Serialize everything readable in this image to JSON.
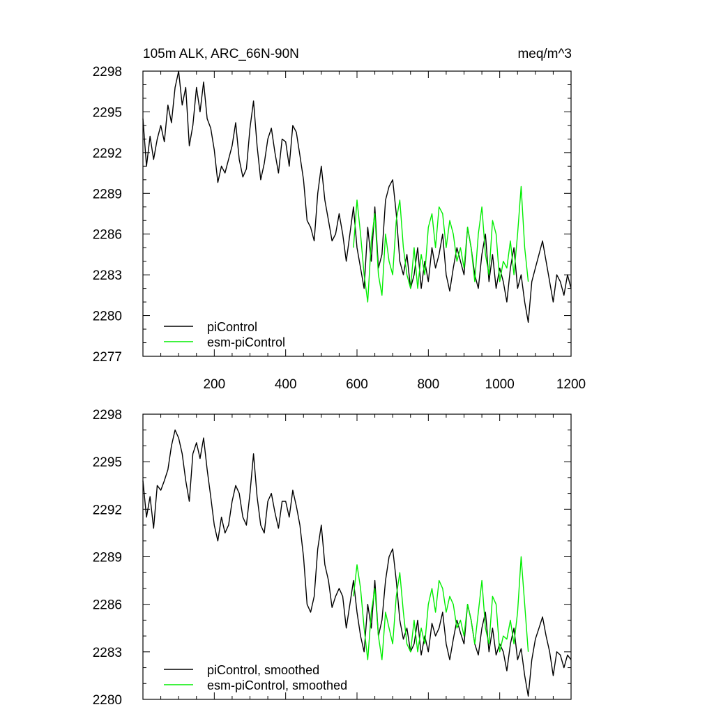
{
  "chart_data": [
    {
      "type": "line",
      "title": "105m ALK, ARC_66N-90N",
      "units": "meq/m^3",
      "xlabel": "",
      "ylabel": "",
      "xlim": [
        0,
        1200
      ],
      "ylim": [
        2277,
        2298
      ],
      "x_ticks": [
        200,
        400,
        600,
        800,
        1000,
        1200
      ],
      "y_ticks": [
        2277,
        2280,
        2283,
        2286,
        2289,
        2292,
        2295,
        2298
      ],
      "legend_position": "bottom-left",
      "series": [
        {
          "name": "piControl",
          "color": "#000000",
          "x": [
            0,
            10,
            20,
            30,
            40,
            50,
            60,
            70,
            80,
            90,
            100,
            110,
            120,
            130,
            140,
            150,
            160,
            170,
            180,
            190,
            200,
            210,
            220,
            230,
            240,
            250,
            260,
            270,
            280,
            290,
            300,
            310,
            320,
            330,
            340,
            350,
            360,
            370,
            380,
            390,
            400,
            410,
            420,
            430,
            440,
            450,
            460,
            470,
            480,
            490,
            500,
            510,
            520,
            530,
            540,
            550,
            560,
            570,
            580,
            590,
            600,
            610,
            620,
            630,
            640,
            650,
            660,
            670,
            680,
            690,
            700,
            710,
            720,
            730,
            740,
            750,
            760,
            770,
            780,
            790,
            800,
            810,
            820,
            830,
            840,
            850,
            860,
            870,
            880,
            890,
            900,
            910,
            920,
            930,
            940,
            950,
            960,
            970,
            980,
            990,
            1000,
            1010,
            1020,
            1030,
            1040,
            1050,
            1060,
            1070,
            1080,
            1090,
            1100,
            1110,
            1120,
            1130,
            1140,
            1150,
            1160,
            1170,
            1180,
            1190,
            1200
          ],
          "values": [
            2294.5,
            2291.0,
            2293.2,
            2291.5,
            2293.0,
            2294.0,
            2292.8,
            2295.5,
            2294.2,
            2296.8,
            2298.0,
            2295.5,
            2296.8,
            2292.5,
            2294.0,
            2296.8,
            2295.0,
            2297.2,
            2294.5,
            2293.8,
            2292.2,
            2289.8,
            2291.0,
            2290.5,
            2291.5,
            2292.5,
            2294.2,
            2291.5,
            2290.2,
            2290.8,
            2293.8,
            2295.8,
            2292.5,
            2290.0,
            2291.2,
            2293.0,
            2293.8,
            2292.0,
            2290.5,
            2293.0,
            2292.8,
            2291.0,
            2294.0,
            2293.5,
            2291.8,
            2290.0,
            2287.0,
            2286.5,
            2285.5,
            2289.0,
            2291.0,
            2288.5,
            2287.0,
            2285.5,
            2286.0,
            2287.5,
            2286.0,
            2284.0,
            2286.0,
            2288.0,
            2285.0,
            2283.5,
            2282.0,
            2286.5,
            2284.0,
            2288.0,
            2283.5,
            2284.5,
            2288.5,
            2289.5,
            2290.0,
            2287.5,
            2284.0,
            2283.0,
            2284.5,
            2282.0,
            2283.0,
            2285.0,
            2282.0,
            2284.0,
            2282.5,
            2285.0,
            2283.5,
            2284.5,
            2286.0,
            2283.0,
            2281.8,
            2283.5,
            2285.0,
            2284.0,
            2283.0,
            2286.5,
            2285.0,
            2283.0,
            2282.0,
            2284.5,
            2286.0,
            2282.5,
            2284.5,
            2282.0,
            2283.5,
            2282.5,
            2281.0,
            2283.5,
            2285.0,
            2282.0,
            2283.0,
            2281.0,
            2279.5,
            2282.5,
            2283.5,
            2284.5,
            2285.5,
            2284.0,
            2282.5,
            2281.0,
            2283.0,
            2282.5,
            2281.5,
            2283.0,
            2282.0
          ]
        },
        {
          "name": "esm-piControl",
          "color": "#00ee00",
          "x": [
            590,
            600,
            610,
            620,
            630,
            640,
            650,
            660,
            670,
            680,
            690,
            700,
            710,
            720,
            730,
            740,
            750,
            760,
            770,
            780,
            790,
            800,
            810,
            820,
            830,
            840,
            850,
            860,
            870,
            880,
            890,
            900,
            910,
            920,
            930,
            940,
            950,
            960,
            970,
            980,
            990,
            1000,
            1010,
            1020,
            1030,
            1040,
            1050,
            1060,
            1070,
            1080
          ],
          "values": [
            2285.0,
            2288.5,
            2286.0,
            2283.0,
            2281.0,
            2285.5,
            2287.5,
            2283.0,
            2281.5,
            2286.0,
            2284.0,
            2283.0,
            2287.0,
            2288.5,
            2285.0,
            2283.0,
            2282.0,
            2285.0,
            2282.0,
            2284.5,
            2283.0,
            2286.5,
            2287.5,
            2285.0,
            2288.0,
            2287.5,
            2285.0,
            2287.0,
            2286.0,
            2284.0,
            2285.0,
            2283.5,
            2286.5,
            2285.0,
            2282.5,
            2286.0,
            2288.0,
            2284.5,
            2283.0,
            2287.0,
            2286.0,
            2282.5,
            2284.0,
            2283.5,
            2285.5,
            2283.0,
            2286.0,
            2289.5,
            2285.0,
            2282.5
          ]
        }
      ]
    },
    {
      "type": "line",
      "title": "",
      "xlabel": "",
      "ylabel": "",
      "xlim": [
        0,
        1200
      ],
      "ylim": [
        2280,
        2298
      ],
      "y_ticks": [
        2280,
        2283,
        2286,
        2289,
        2292,
        2295,
        2298
      ],
      "legend_position": "bottom-left",
      "series": [
        {
          "name": "piControl, smoothed",
          "color": "#000000",
          "x": [
            0,
            10,
            20,
            30,
            40,
            50,
            60,
            70,
            80,
            90,
            100,
            110,
            120,
            130,
            140,
            150,
            160,
            170,
            180,
            190,
            200,
            210,
            220,
            230,
            240,
            250,
            260,
            270,
            280,
            290,
            300,
            310,
            320,
            330,
            340,
            350,
            360,
            370,
            380,
            390,
            400,
            410,
            420,
            430,
            440,
            450,
            460,
            470,
            480,
            490,
            500,
            510,
            520,
            530,
            540,
            550,
            560,
            570,
            580,
            590,
            600,
            610,
            620,
            630,
            640,
            650,
            660,
            670,
            680,
            690,
            700,
            710,
            720,
            730,
            740,
            750,
            760,
            770,
            780,
            790,
            800,
            810,
            820,
            830,
            840,
            850,
            860,
            870,
            880,
            890,
            900,
            910,
            920,
            930,
            940,
            950,
            960,
            970,
            980,
            990,
            1000,
            1010,
            1020,
            1030,
            1040,
            1050,
            1060,
            1070,
            1080,
            1090,
            1100,
            1110,
            1120,
            1130,
            1140,
            1150,
            1160,
            1170,
            1180,
            1190,
            1200
          ],
          "values": [
            2293.8,
            2291.5,
            2292.8,
            2290.8,
            2293.5,
            2293.2,
            2293.8,
            2294.5,
            2296.0,
            2297.0,
            2296.5,
            2295.5,
            2293.8,
            2292.5,
            2295.5,
            2296.2,
            2295.2,
            2296.5,
            2294.5,
            2292.8,
            2291.0,
            2290.0,
            2291.5,
            2290.5,
            2291.0,
            2292.5,
            2293.5,
            2293.0,
            2291.5,
            2291.0,
            2293.0,
            2295.5,
            2292.8,
            2291.0,
            2290.5,
            2292.5,
            2293.0,
            2291.8,
            2290.8,
            2292.5,
            2292.5,
            2291.5,
            2293.2,
            2292.2,
            2291.0,
            2289.0,
            2286.0,
            2285.5,
            2286.5,
            2289.5,
            2291.0,
            2288.5,
            2287.5,
            2285.8,
            2286.5,
            2287.0,
            2286.5,
            2284.5,
            2286.0,
            2287.5,
            2285.5,
            2284.0,
            2283.0,
            2286.0,
            2284.5,
            2287.5,
            2284.0,
            2285.0,
            2287.5,
            2289.0,
            2289.5,
            2287.5,
            2285.0,
            2283.8,
            2284.5,
            2283.0,
            2283.5,
            2285.0,
            2282.8,
            2284.0,
            2283.0,
            2284.8,
            2284.0,
            2284.5,
            2285.5,
            2283.5,
            2282.5,
            2283.8,
            2285.0,
            2284.2,
            2283.5,
            2286.0,
            2285.0,
            2283.5,
            2282.8,
            2284.5,
            2285.5,
            2283.0,
            2284.5,
            2282.8,
            2283.5,
            2283.0,
            2281.8,
            2283.5,
            2284.5,
            2282.5,
            2283.2,
            2281.5,
            2280.2,
            2282.5,
            2283.8,
            2284.5,
            2285.2,
            2284.0,
            2283.0,
            2281.5,
            2283.0,
            2282.8,
            2282.0,
            2282.8,
            2282.5
          ]
        },
        {
          "name": "esm-piControl, smoothed",
          "color": "#00ee00",
          "x": [
            590,
            600,
            610,
            620,
            630,
            640,
            650,
            660,
            670,
            680,
            690,
            700,
            710,
            720,
            730,
            740,
            750,
            760,
            770,
            780,
            790,
            800,
            810,
            820,
            830,
            840,
            850,
            860,
            870,
            880,
            890,
            900,
            910,
            920,
            930,
            940,
            950,
            960,
            970,
            980,
            990,
            1000,
            1010,
            1020,
            1030,
            1040,
            1050,
            1060,
            1070,
            1080
          ],
          "values": [
            2286.5,
            2288.5,
            2287.0,
            2284.5,
            2282.5,
            2285.5,
            2287.0,
            2284.0,
            2282.5,
            2285.5,
            2284.5,
            2283.5,
            2286.5,
            2288.0,
            2285.5,
            2283.5,
            2283.0,
            2285.0,
            2283.0,
            2284.5,
            2283.5,
            2286.0,
            2287.0,
            2285.5,
            2287.5,
            2287.0,
            2285.5,
            2286.5,
            2286.0,
            2284.5,
            2285.0,
            2284.0,
            2286.0,
            2285.0,
            2283.5,
            2285.5,
            2287.5,
            2284.5,
            2283.5,
            2286.5,
            2286.0,
            2283.0,
            2284.0,
            2283.8,
            2285.0,
            2283.5,
            2285.5,
            2289.0,
            2286.0,
            2283.0
          ]
        }
      ]
    }
  ]
}
